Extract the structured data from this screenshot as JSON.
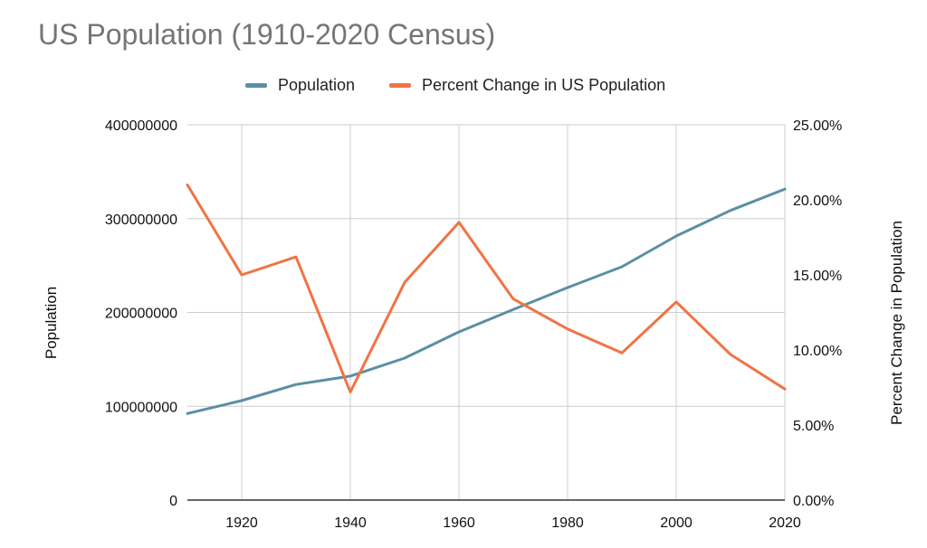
{
  "title": "US Population (1910-2020 Census)",
  "colors": {
    "population": "#5b8fa3",
    "percent_change": "#f07444",
    "grid": "#cccccc",
    "axis": "#333333",
    "title": "#757575"
  },
  "chart_data": {
    "type": "line",
    "title": "US Population (1910-2020 Census)",
    "xlabel": "",
    "ylabel": "Population",
    "y2label": "Percent Change in Population",
    "legend_position": "top",
    "grid": true,
    "x": [
      1910,
      1920,
      1930,
      1940,
      1950,
      1960,
      1970,
      1980,
      1990,
      2000,
      2010,
      2020
    ],
    "xlim": [
      1910,
      2020
    ],
    "x_ticks": [
      "1920",
      "1940",
      "1960",
      "1980",
      "2000",
      "2020"
    ],
    "ylim": [
      0,
      400000000
    ],
    "y_ticks": [
      "0",
      "100000000",
      "200000000",
      "300000000",
      "400000000"
    ],
    "y2lim": [
      0,
      25
    ],
    "y2_ticks": [
      "0.00%",
      "5.00%",
      "10.00%",
      "15.00%",
      "20.00%",
      "25.00%"
    ],
    "series": [
      {
        "name": "Population",
        "axis": "left",
        "values": [
          92228496,
          106021537,
          123202624,
          132164569,
          151325798,
          179323175,
          203211926,
          226545805,
          248709873,
          281421906,
          308745538,
          331449281
        ]
      },
      {
        "name": "Percent Change in US Population",
        "axis": "right",
        "unit": "percent",
        "values": [
          21.0,
          15.0,
          16.2,
          7.2,
          14.5,
          18.5,
          13.4,
          11.4,
          9.8,
          13.2,
          9.7,
          7.4
        ]
      }
    ]
  }
}
